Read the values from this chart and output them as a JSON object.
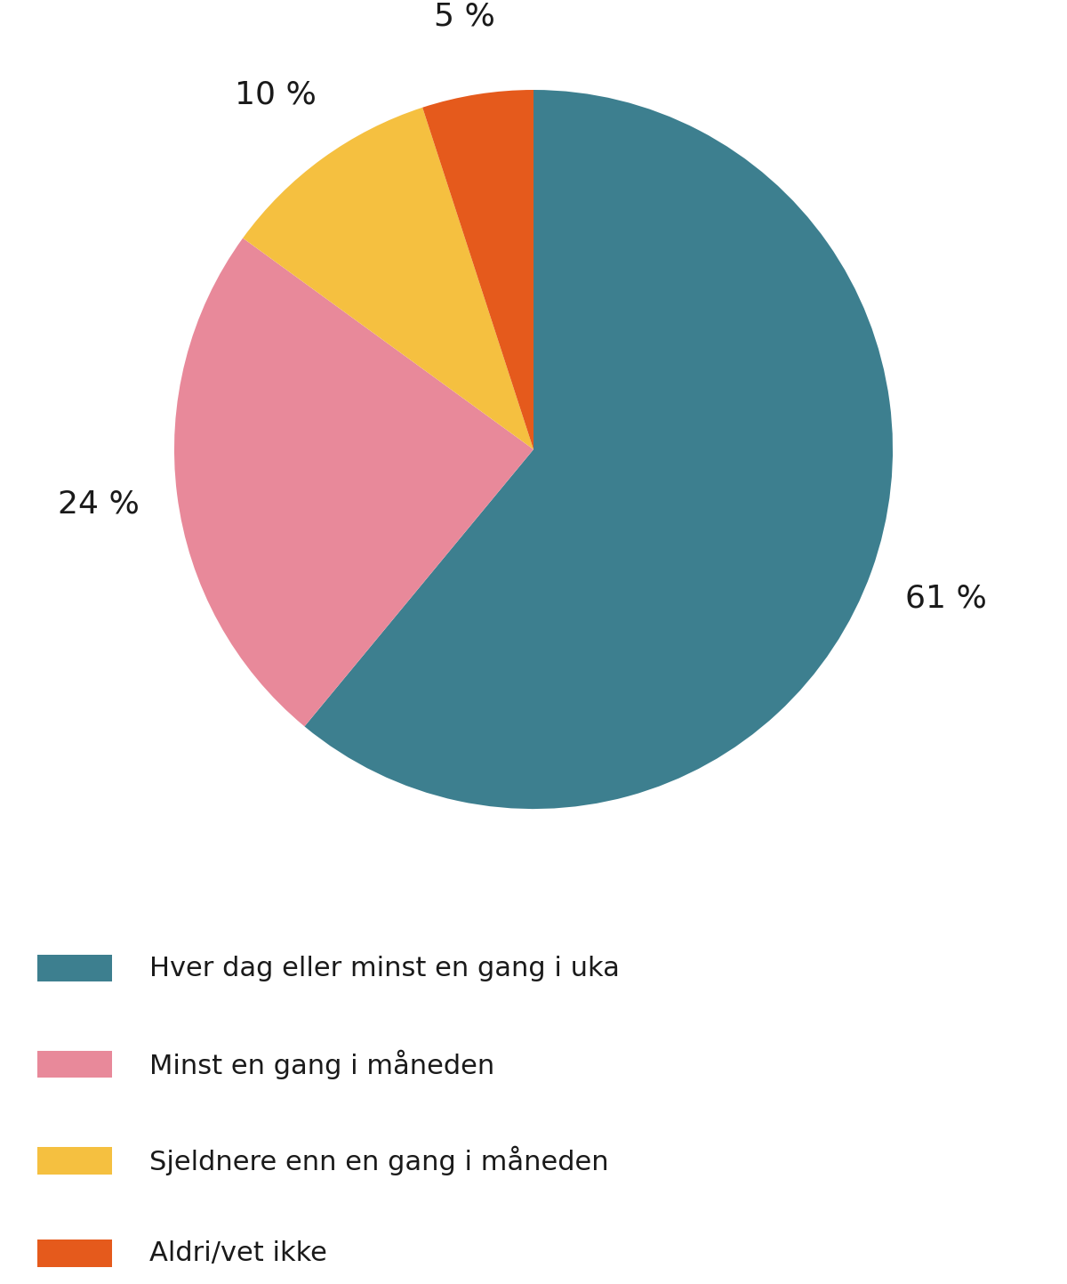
{
  "slices": [
    61,
    24,
    10,
    5
  ],
  "labels": [
    "61 %",
    "24 %",
    "10 %",
    "5 %"
  ],
  "colors": [
    "#3d7f8f",
    "#e8899a",
    "#f5c040",
    "#e55a1c"
  ],
  "legend_labels": [
    "Hver dag eller minst en gang i uka",
    "Minst en gang i måneden",
    "Sjeldnere enn en gang i måneden",
    "Aldri/vet ikke"
  ],
  "startangle": 90,
  "label_fontsize": 26,
  "legend_fontsize": 22,
  "background_color": "#ffffff"
}
